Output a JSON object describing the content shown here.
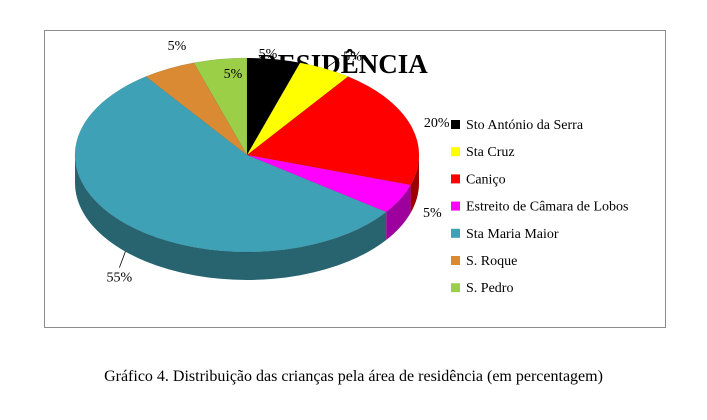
{
  "chart_data": {
    "type": "pie",
    "title": "RESIDÊNCIA",
    "categories": [
      "Sto António da Serra",
      "Sta Cruz",
      "Caniço",
      "Estreito de Câmara de Lobos",
      "Sta Maria Maior",
      "S. Roque",
      "S. Pedro"
    ],
    "values": [
      5,
      5,
      20,
      5,
      55,
      5,
      5
    ],
    "labels": [
      "5%",
      "5%",
      "20%",
      "5%",
      "55%",
      "5%",
      "5%"
    ],
    "colors": [
      "#000000",
      "#ffff00",
      "#ff0000",
      "#ff00ff",
      "#3fa1b5",
      "#d98a32",
      "#9ccf48"
    ],
    "legend_position": "right",
    "style": "3d"
  },
  "caption": "Gráfico 4. Distribuição das crianças pela área de residência (em percentagem)"
}
